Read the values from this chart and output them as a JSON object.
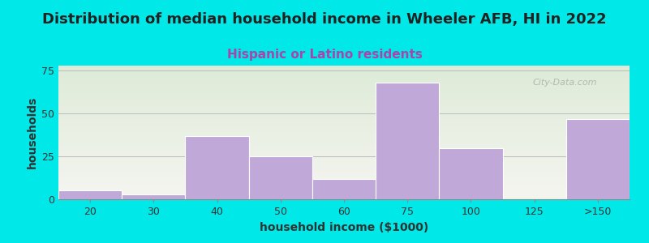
{
  "title": "Distribution of median household income in Wheeler AFB, HI in 2022",
  "subtitle": "Hispanic or Latino residents",
  "xlabel": "household income ($1000)",
  "ylabel": "households",
  "categories": [
    "20",
    "30",
    "40",
    "50",
    "60",
    "75",
    "100",
    "125",
    ">150"
  ],
  "values": [
    5,
    3,
    37,
    25,
    12,
    68,
    30,
    0,
    47
  ],
  "bar_color": "#c0a8d8",
  "ylim": [
    0,
    78
  ],
  "yticks": [
    0,
    25,
    50,
    75
  ],
  "background_color": "#00e8e8",
  "plot_bg_top_color": "#deebd8",
  "plot_bg_bottom_color": "#f5f5f0",
  "title_fontsize": 13,
  "subtitle_fontsize": 11,
  "subtitle_color": "#aa44aa",
  "axis_label_fontsize": 10,
  "tick_fontsize": 9,
  "watermark_text": "City-Data.com",
  "title_color": "#222222"
}
